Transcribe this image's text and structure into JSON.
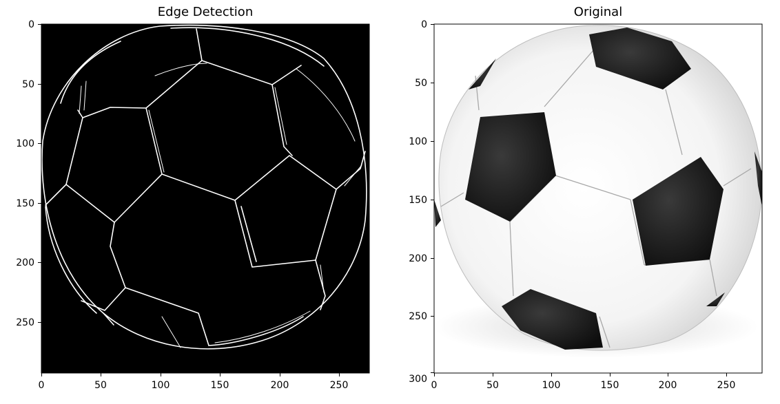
{
  "panels": [
    {
      "title": "Edge Detection",
      "xticks": [
        "0",
        "50",
        "100",
        "150",
        "200",
        "250"
      ],
      "yticks": [
        "0",
        "50",
        "100",
        "150",
        "200",
        "250"
      ],
      "colors": {
        "background": "#000000",
        "edges": "#ffffff"
      }
    },
    {
      "title": "Original",
      "xticks": [
        "0",
        "50",
        "100",
        "150",
        "200",
        "250"
      ],
      "yticks": [
        "0",
        "50",
        "100",
        "150",
        "200",
        "250",
        "300"
      ],
      "colors": {
        "background": "#ffffff",
        "patch": "#1a1a1a",
        "panel": "#f2f2f2",
        "shadow": "#d9d9d9"
      }
    }
  ]
}
